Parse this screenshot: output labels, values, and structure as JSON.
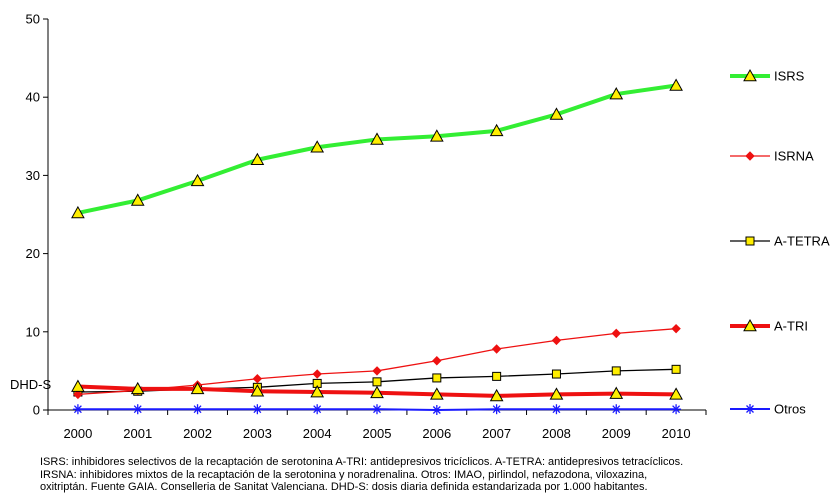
{
  "chart_data": {
    "type": "line",
    "categories": [
      "2000",
      "2001",
      "2002",
      "2003",
      "2004",
      "2005",
      "2006",
      "2007",
      "2008",
      "2009",
      "2010"
    ],
    "ylabel": "DHD-S",
    "ylim": [
      0,
      50
    ],
    "yticks": [
      0,
      10,
      20,
      30,
      40,
      50
    ],
    "grid": false,
    "legend_position": "right",
    "series": [
      {
        "name": "ISRS",
        "color": "#33ee33",
        "marker": "triangle",
        "values": [
          25.2,
          26.8,
          29.3,
          32.0,
          33.6,
          34.6,
          35.0,
          35.7,
          37.8,
          40.4,
          41.5
        ]
      },
      {
        "name": "ISRNA",
        "color": "#ee1111",
        "marker": "diamond",
        "values": [
          2.0,
          2.5,
          3.2,
          4.0,
          4.6,
          5.0,
          6.3,
          7.8,
          8.9,
          9.8,
          10.4
        ]
      },
      {
        "name": "A-TETRA",
        "color": "#000000",
        "marker": "square",
        "values": [
          2.3,
          2.4,
          2.7,
          2.9,
          3.4,
          3.6,
          4.1,
          4.3,
          4.6,
          5.0,
          5.2
        ]
      },
      {
        "name": "A-TRI",
        "color": "#ee1111",
        "marker": "triangle",
        "values": [
          3.0,
          2.7,
          2.7,
          2.4,
          2.3,
          2.2,
          2.0,
          1.8,
          2.0,
          2.1,
          2.0
        ]
      },
      {
        "name": "Otros",
        "color": "#1a1aff",
        "marker": "star",
        "values": [
          0.1,
          0.1,
          0.1,
          0.1,
          0.1,
          0.1,
          0.0,
          0.1,
          0.1,
          0.1,
          0.1
        ]
      }
    ]
  },
  "caption": {
    "line1": "ISRS: inhibidores selectivos de la recaptación de serotonina A-TRI: antidepresivos tricíclicos. A-TETRA: antidepresivos tetracíclicos.",
    "line2": "IRSNA: inhibidores mixtos de la recaptación de la serotonina  y noradrenalina. Otros: IMAO, pirlindol, nefazodona, viloxazina,",
    "line3": "oxitriptán. Fuente GAIA. Conselleria de Sanitat Valenciana. DHD-S: dosis diaria definida estandarizada por 1.000 habitantes."
  }
}
